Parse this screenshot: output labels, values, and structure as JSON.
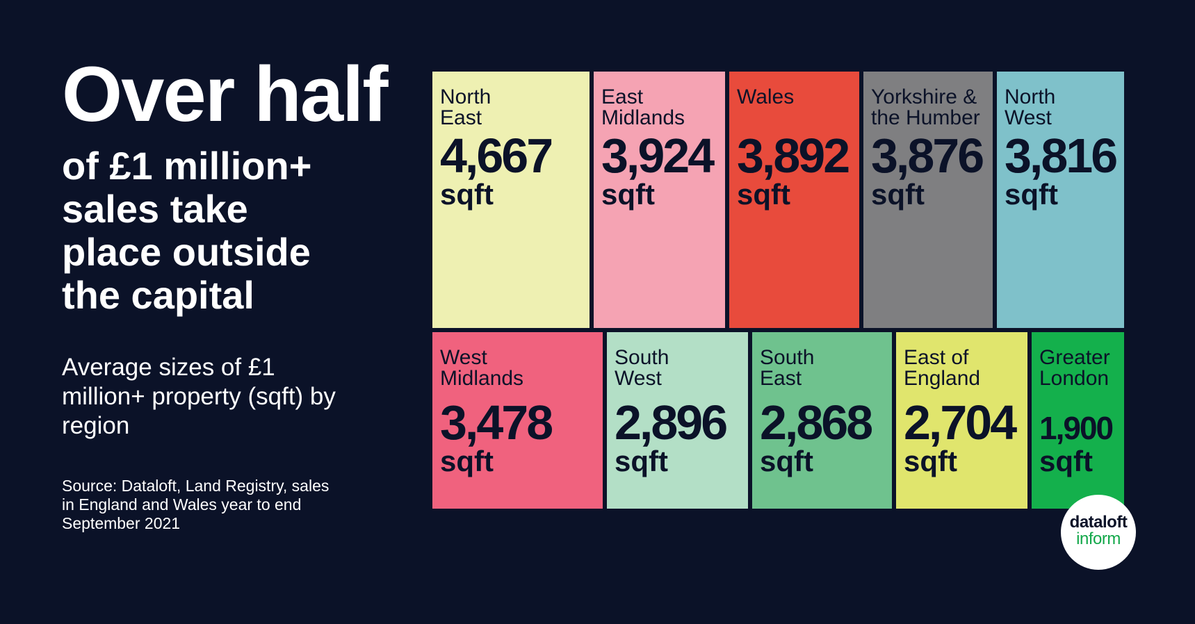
{
  "headline": "Over half",
  "subhead": "of £1 million+ sales take place outside the capital",
  "caption": "Average sizes of £1 million+ property (sqft) by region",
  "source": "Source: Dataloft, Land Registry, sales in England and Wales year to end September 2021",
  "logo": {
    "line1": "dataloft",
    "line2": "inform"
  },
  "colors": {
    "background": "#0b1228",
    "text_dark": "#0b1228",
    "logo_green": "#13a84a"
  },
  "chart_data": {
    "type": "treemap",
    "unit": "sqft",
    "categories": [
      "North East",
      "East Midlands",
      "Wales",
      "Yorkshire & the Humber",
      "North West",
      "West Midlands",
      "South West",
      "South East",
      "East of England",
      "Greater London"
    ],
    "values": [
      4667,
      3924,
      3892,
      3876,
      3816,
      3478,
      2896,
      2868,
      2704,
      1900
    ],
    "tiles": [
      {
        "region_line1": "North",
        "region_line2": "East",
        "value": 4667,
        "value_label": "4,667",
        "unit": "sqft",
        "color": "#eef0b2"
      },
      {
        "region_line1": "East",
        "region_line2": "Midlands",
        "value": 3924,
        "value_label": "3,924",
        "unit": "sqft",
        "color": "#f5a3b3"
      },
      {
        "region_line1": "Wales",
        "region_line2": "",
        "value": 3892,
        "value_label": "3,892",
        "unit": "sqft",
        "color": "#e84b3c"
      },
      {
        "region_line1": "Yorkshire &",
        "region_line2": "the Humber",
        "value": 3876,
        "value_label": "3,876",
        "unit": "sqft",
        "color": "#7f7f81"
      },
      {
        "region_line1": "North",
        "region_line2": "West",
        "value": 3816,
        "value_label": "3,816",
        "unit": "sqft",
        "color": "#7fc1ca"
      },
      {
        "region_line1": "West",
        "region_line2": "Midlands",
        "value": 3478,
        "value_label": "3,478",
        "unit": "sqft",
        "color": "#f0627e"
      },
      {
        "region_line1": "South",
        "region_line2": "West",
        "value": 2896,
        "value_label": "2,896",
        "unit": "sqft",
        "color": "#b3dfc6"
      },
      {
        "region_line1": "South",
        "region_line2": "East",
        "value": 2868,
        "value_label": "2,868",
        "unit": "sqft",
        "color": "#6fc28e"
      },
      {
        "region_line1": "East of",
        "region_line2": "England",
        "value": 2704,
        "value_label": "2,704",
        "unit": "sqft",
        "color": "#e0e56d"
      },
      {
        "region_line1": "Greater",
        "region_line2": "London",
        "value": 1900,
        "value_label": "1,900",
        "unit": "sqft",
        "color": "#14b04c"
      }
    ]
  }
}
